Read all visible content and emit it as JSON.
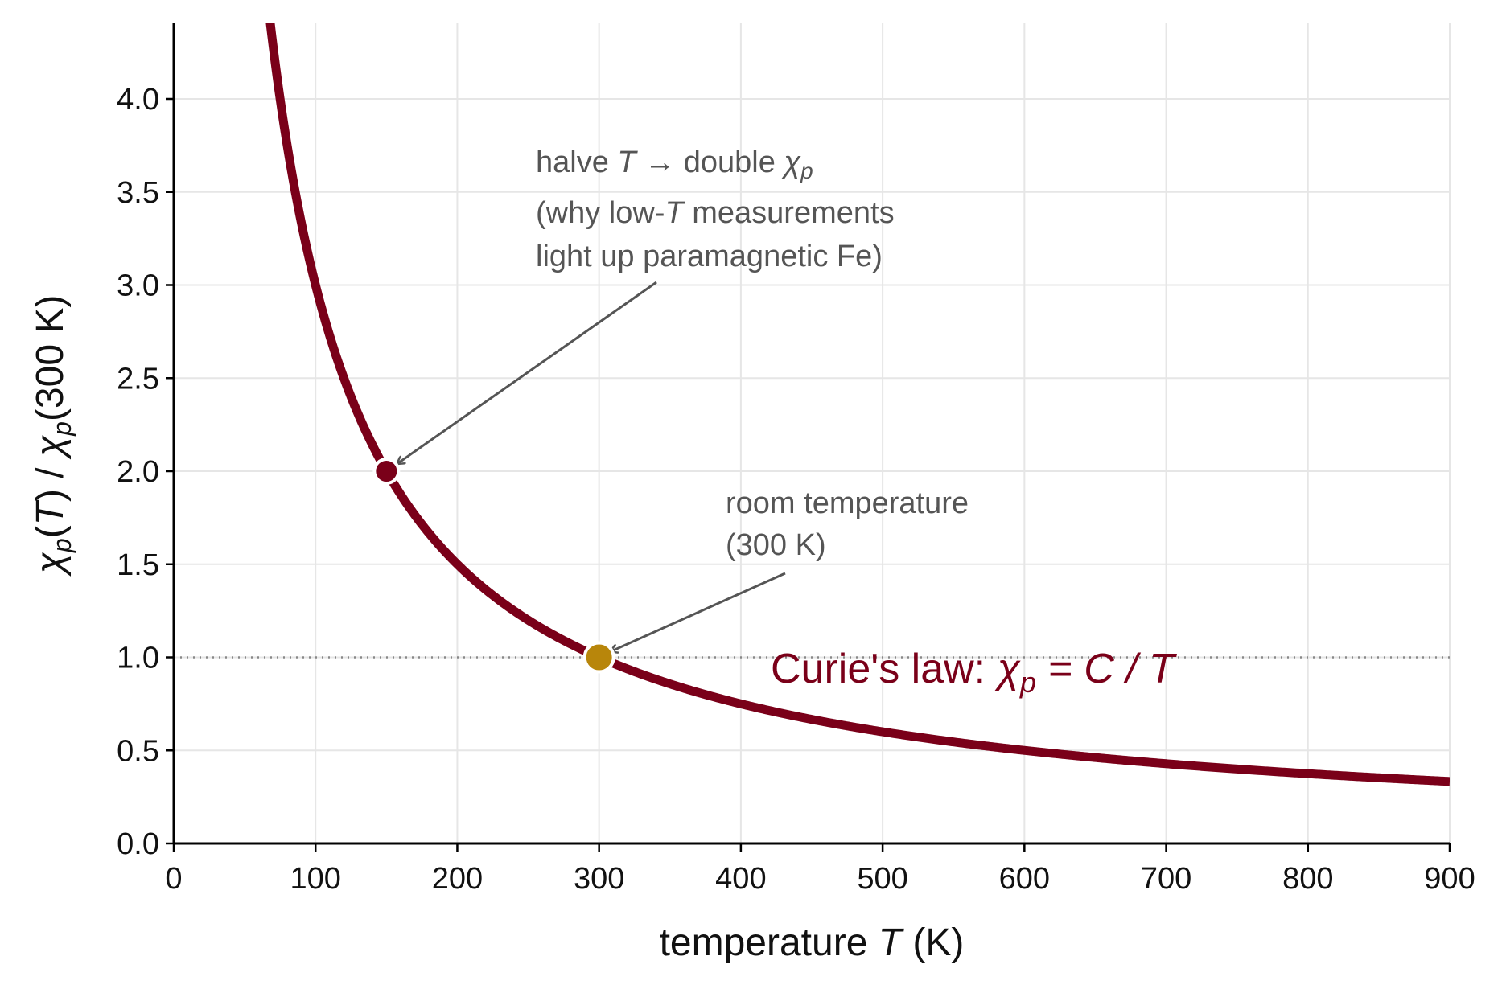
{
  "chart_data": {
    "type": "line",
    "x": {
      "label_prefix": "temperature ",
      "label_var": "T",
      "label_suffix": " (K)",
      "lim": [
        0,
        900
      ],
      "ticks": [
        0,
        100,
        200,
        300,
        400,
        500,
        600,
        700,
        800,
        900
      ]
    },
    "y": {
      "label": "χp(T) / χp(300 K)",
      "lim": [
        0,
        4.4
      ],
      "ticks": [
        0,
        0.5,
        1,
        1.5,
        2,
        2.5,
        3,
        3.5,
        4
      ],
      "tick_labels": [
        "0.0",
        "0.5",
        "1.0",
        "1.5",
        "2.0",
        "2.5",
        "3.0",
        "3.5",
        "4.0"
      ]
    },
    "grid": true,
    "series": [
      {
        "curve": "y = 300 / T",
        "x_range": [
          62,
          900
        ],
        "color": "#7a0019"
      }
    ],
    "reference_line": {
      "y": 1.0,
      "style": "dotted",
      "color": "#888888"
    },
    "points": [
      {
        "x": 150,
        "y": 2.0,
        "color": "#7a0019"
      },
      {
        "x": 300,
        "y": 1.0,
        "color": "#b8860b"
      }
    ],
    "annotations": [
      {
        "lines": [
          "halve T → double χp",
          "(why low-T measurements",
          "light up paramagnetic Fe)"
        ],
        "points_to": {
          "x": 150,
          "y": 2.0
        }
      },
      {
        "lines": [
          "room temperature",
          "(300 K)"
        ],
        "points_to": {
          "x": 300,
          "y": 1.0
        }
      }
    ],
    "law_label": "Curie's law:  χp = C / T"
  }
}
